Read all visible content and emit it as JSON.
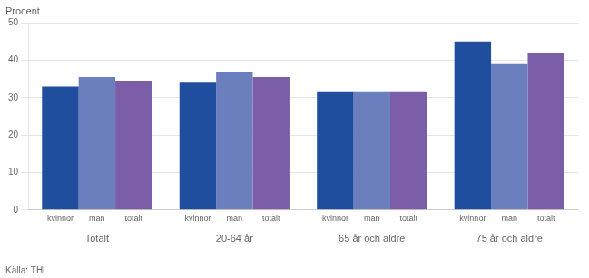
{
  "chart_data": {
    "type": "bar",
    "ylabel": "Procent",
    "source": "Källa: THL",
    "categories": [
      "Totalt",
      "20-64 år",
      "65 år och äldre",
      "75 år och äldre"
    ],
    "series": [
      {
        "name": "kvinnor",
        "color": "#1f4e9e",
        "values": [
          33,
          34,
          31.5,
          45
        ]
      },
      {
        "name": "män",
        "color": "#6b7fbe",
        "values": [
          35.5,
          37,
          31.5,
          39
        ]
      },
      {
        "name": "totalt",
        "color": "#7b5ea7",
        "values": [
          34.5,
          35.5,
          31.5,
          42
        ]
      }
    ],
    "ylim": [
      0,
      50
    ],
    "yticks": [
      0,
      10,
      20,
      30,
      40,
      50
    ],
    "grid": true
  }
}
